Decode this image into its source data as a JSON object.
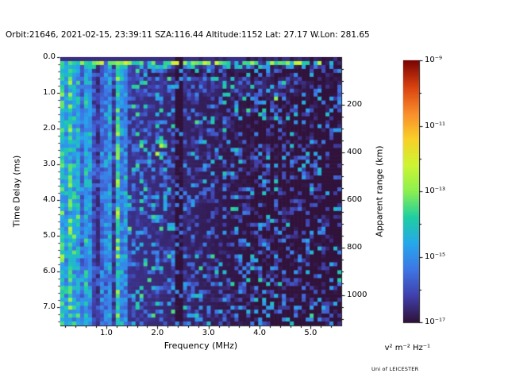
{
  "figure": {
    "title": "Orbit:21646, 2021-02-15, 23:39:11 SZA:116.44 Altitude:1152 Lat: 27.17 W.Lon: 281.65",
    "branding": "Uni of LEICESTER"
  },
  "chart_data": {
    "type": "heatmap",
    "title": "Orbit:21646, 2021-02-15, 23:39:11 SZA:116.44 Altitude:1152 Lat: 27.17 W.Lon: 281.65",
    "xlabel": "Frequency (MHz)",
    "ylabel": "Time Delay (ms)",
    "ylabel_right": "Apparent range (km)",
    "xlim_mhz": [
      0.1,
      5.6
    ],
    "ylim_ms": [
      0,
      7.5
    ],
    "x_ticks": [
      1.0,
      2.0,
      3.0,
      4.0,
      5.0
    ],
    "y_ticks": [
      0.0,
      1.0,
      2.0,
      3.0,
      4.0,
      5.0,
      6.0,
      7.0
    ],
    "y_ticks_right": [
      200,
      400,
      600,
      800,
      1000
    ],
    "colorbar": {
      "scale": "log",
      "vmin": 1e-17,
      "vmax": 1e-09,
      "tick_labels": [
        "10⁻⁹",
        "10⁻¹¹",
        "10⁻¹³",
        "10⁻¹⁵",
        "10⁻¹⁷"
      ],
      "units_label": "v² m⁻² Hz⁻¹",
      "colormap": "turbo"
    },
    "features": {
      "surface_reflection_line_ms": 0.2,
      "ionospheric_stripe_band_mhz": [
        0.1,
        1.42
      ],
      "brightest_stripes_mhz": [
        0.1,
        0.6
      ],
      "absorption_band_mhz": [
        2.32,
        2.54
      ],
      "background_level": "1e-17 to 1e-16 v2 m-2 Hz-1",
      "noise_description": "speckled radar noise, intensity decreasing with frequency; strong vertical striping below 1.4 MHz; dashed bright horizontal echo near 0.2 ms delay; dark vertical absorption band near 2.4 MHz"
    },
    "render": {
      "seed": 1337,
      "cols": 71,
      "rows": 68
    }
  }
}
